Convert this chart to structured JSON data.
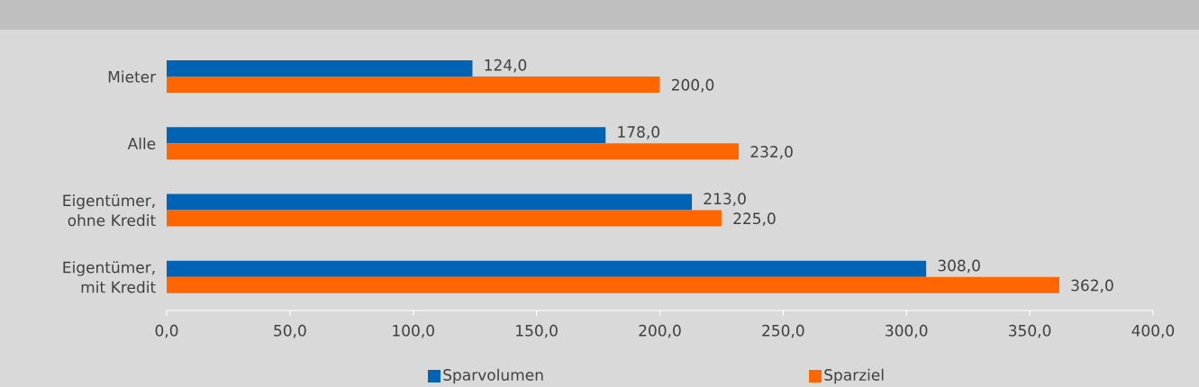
{
  "chart_data": {
    "type": "bar",
    "orientation": "horizontal",
    "categories": [
      "Mieter",
      "Alle",
      "Eigentümer, ohne Kredit",
      "Eigentümer, mit Kredit"
    ],
    "series": [
      {
        "name": "Sparvolumen",
        "color": "#0063b4",
        "values": [
          124.0,
          178.0,
          213.0,
          308.0
        ],
        "value_labels": [
          "124,0",
          "178,0",
          "213,0",
          "308,0"
        ]
      },
      {
        "name": "Sparziel",
        "color": "#ff6600",
        "values": [
          200.0,
          232.0,
          225.0,
          362.0
        ],
        "value_labels": [
          "200,0",
          "232,0",
          "225,0",
          "362,0"
        ]
      }
    ],
    "xlim": [
      0,
      400
    ],
    "xticks": [
      {
        "value": 0,
        "label": "0,0"
      },
      {
        "value": 50,
        "label": "50,0"
      },
      {
        "value": 100,
        "label": "100,0"
      },
      {
        "value": 150,
        "label": "150,0"
      },
      {
        "value": 200,
        "label": "200,0"
      },
      {
        "value": 250,
        "label": "250,0"
      },
      {
        "value": 300,
        "label": "300,0"
      },
      {
        "value": 350,
        "label": "350,0"
      },
      {
        "value": 400,
        "label": "400,0"
      }
    ],
    "grid": false,
    "legend": "bottom"
  }
}
